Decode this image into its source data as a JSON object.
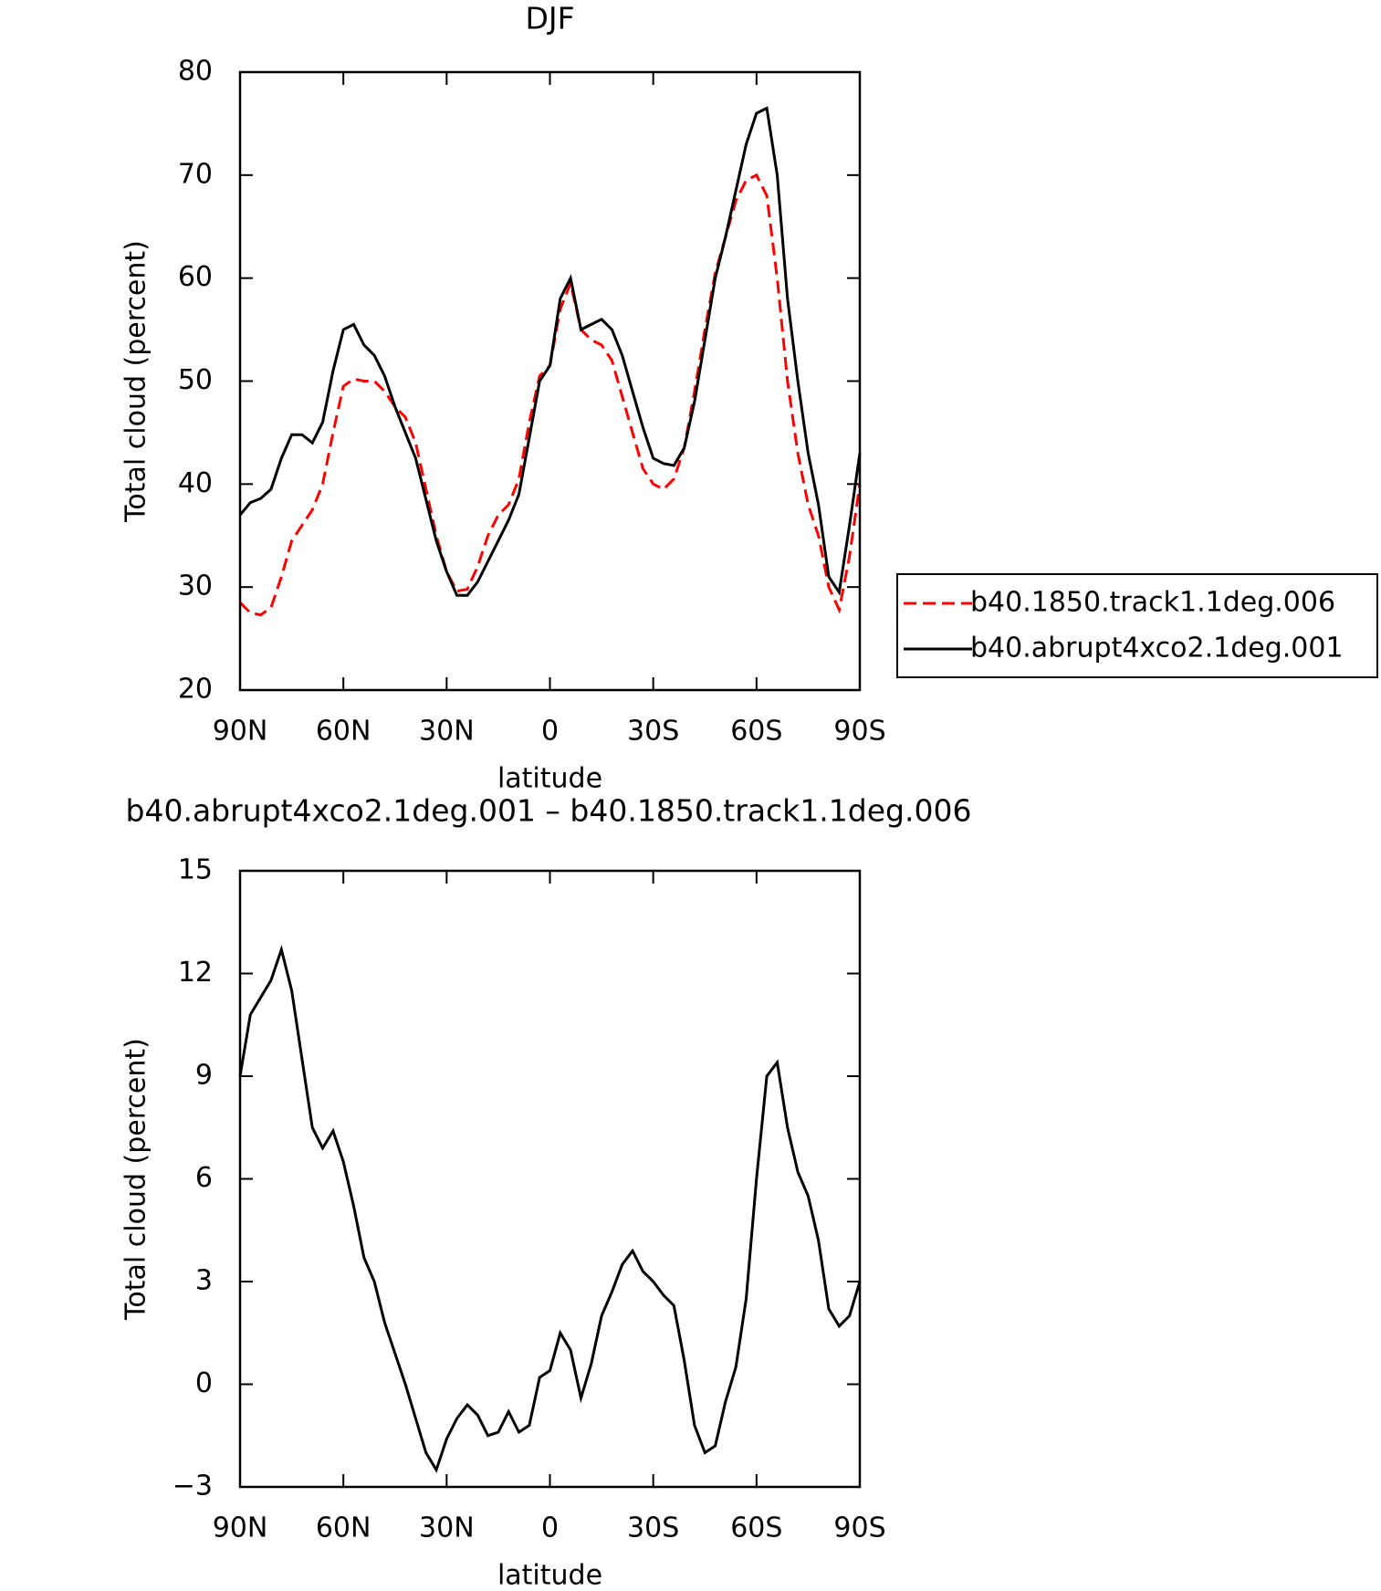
{
  "chart_data": [
    {
      "type": "line",
      "title": "DJF",
      "xlabel": "latitude",
      "ylabel": "Total cloud (percent)",
      "x": [
        90,
        87,
        84,
        81,
        78,
        75,
        72,
        69,
        66,
        63,
        60,
        57,
        54,
        51,
        48,
        45,
        42,
        39,
        36,
        33,
        30,
        27,
        24,
        21,
        18,
        15,
        12,
        9,
        6,
        3,
        0,
        -3,
        -6,
        -9,
        -12,
        -15,
        -18,
        -21,
        -24,
        -27,
        -30,
        -33,
        -36,
        -39,
        -42,
        -45,
        -48,
        -51,
        -54,
        -57,
        -60,
        -63,
        -66,
        -69,
        -72,
        -75,
        -78,
        -81,
        -84,
        -87,
        -90
      ],
      "series": [
        {
          "name": "b40.1850.track1.1deg.006",
          "color": "#ff0000",
          "line_style": "dashed",
          "values": [
            28.5,
            27.5,
            27.3,
            28,
            31,
            34.5,
            36,
            37.5,
            40,
            45,
            49.5,
            50.2,
            50,
            50,
            49,
            47.5,
            46.5,
            44,
            39.5,
            35,
            31.5,
            29.6,
            29.8,
            32,
            35,
            37,
            38,
            40.5,
            46,
            50.5,
            51.5,
            57,
            59.5,
            55,
            54,
            53.5,
            52,
            48.5,
            45,
            41.5,
            40,
            39.5,
            40.5,
            43.5,
            49,
            55,
            60.5,
            64,
            67.5,
            69.5,
            70,
            68,
            60,
            50,
            43,
            38,
            35,
            30,
            27.8,
            33,
            40
          ]
        },
        {
          "name": "b40.abrupt4xco2.1deg.001",
          "color": "#000000",
          "line_style": "solid",
          "values": [
            37,
            38.2,
            38.6,
            39.5,
            42.5,
            44.8,
            44.8,
            44,
            46,
            51,
            55,
            55.5,
            53.5,
            52.5,
            50.5,
            47.5,
            45,
            42.5,
            38.5,
            34.5,
            31.5,
            29.2,
            29.2,
            30.5,
            32.5,
            34.5,
            36.5,
            39,
            44.5,
            50,
            51.5,
            58,
            60,
            55,
            55.5,
            56,
            55,
            52.5,
            49,
            45.5,
            42.5,
            42,
            41.8,
            43.5,
            48,
            54,
            60,
            64,
            68.5,
            73,
            76,
            76.5,
            70,
            58,
            50,
            43,
            38,
            31,
            29.5,
            36,
            43
          ]
        }
      ],
      "xlim": [
        90,
        -90
      ],
      "xticks": [
        {
          "value": 90,
          "label": "90N"
        },
        {
          "value": 60,
          "label": "60N"
        },
        {
          "value": 30,
          "label": "30N"
        },
        0,
        {
          "value": -30,
          "label": "30S"
        },
        {
          "value": -60,
          "label": "60S"
        },
        {
          "value": -90,
          "label": "90S"
        }
      ],
      "ylim": [
        20,
        80
      ],
      "yticks": [
        20,
        30,
        40,
        50,
        60,
        70,
        80
      ],
      "legend": "outside right"
    },
    {
      "type": "line",
      "title": "b40.abrupt4xco2.1deg.001 – b40.1850.track1.1deg.006",
      "xlabel": "latitude",
      "ylabel": "Total cloud (percent)",
      "x": [
        90,
        87,
        84,
        81,
        78,
        75,
        72,
        69,
        66,
        63,
        60,
        57,
        54,
        51,
        48,
        45,
        42,
        39,
        36,
        33,
        30,
        27,
        24,
        21,
        18,
        15,
        12,
        9,
        6,
        3,
        0,
        -3,
        -6,
        -9,
        -12,
        -15,
        -18,
        -21,
        -24,
        -27,
        -30,
        -33,
        -36,
        -39,
        -42,
        -45,
        -48,
        -51,
        -54,
        -57,
        -60,
        -63,
        -66,
        -69,
        -72,
        -75,
        -78,
        -81,
        -84,
        -87,
        -90
      ],
      "series": [
        {
          "color": "#000000",
          "line_style": "solid",
          "values": [
            9,
            10.8,
            11.3,
            11.8,
            12.7,
            11.5,
            9.5,
            7.5,
            6.9,
            7.4,
            6.5,
            5.2,
            3.7,
            3,
            1.8,
            0.9,
            0,
            -1,
            -2,
            -2.5,
            -1.6,
            -1,
            -0.6,
            -0.9,
            -1.5,
            -1.4,
            -0.8,
            -1.4,
            -1.2,
            0.2,
            0.4,
            1.5,
            1,
            -0.4,
            0.6,
            2,
            2.7,
            3.5,
            3.9,
            3.3,
            3,
            2.6,
            2.3,
            0.7,
            -1.2,
            -2,
            -1.8,
            -0.5,
            0.5,
            2.5,
            6,
            9,
            9.4,
            7.5,
            6.2,
            5.5,
            4.2,
            2.2,
            1.7,
            2,
            3
          ]
        }
      ],
      "xlim": [
        90,
        -90
      ],
      "xticks": [
        {
          "value": 90,
          "label": "90N"
        },
        {
          "value": 60,
          "label": "60N"
        },
        {
          "value": 30,
          "label": "30N"
        },
        0,
        {
          "value": -30,
          "label": "30S"
        },
        {
          "value": -60,
          "label": "60S"
        },
        {
          "value": -90,
          "label": "90S"
        }
      ],
      "ylim": [
        -3,
        15
      ],
      "yticks": [
        {
          "value": -3,
          "label": "−3"
        },
        0,
        3,
        6,
        9,
        12,
        15
      ]
    }
  ]
}
